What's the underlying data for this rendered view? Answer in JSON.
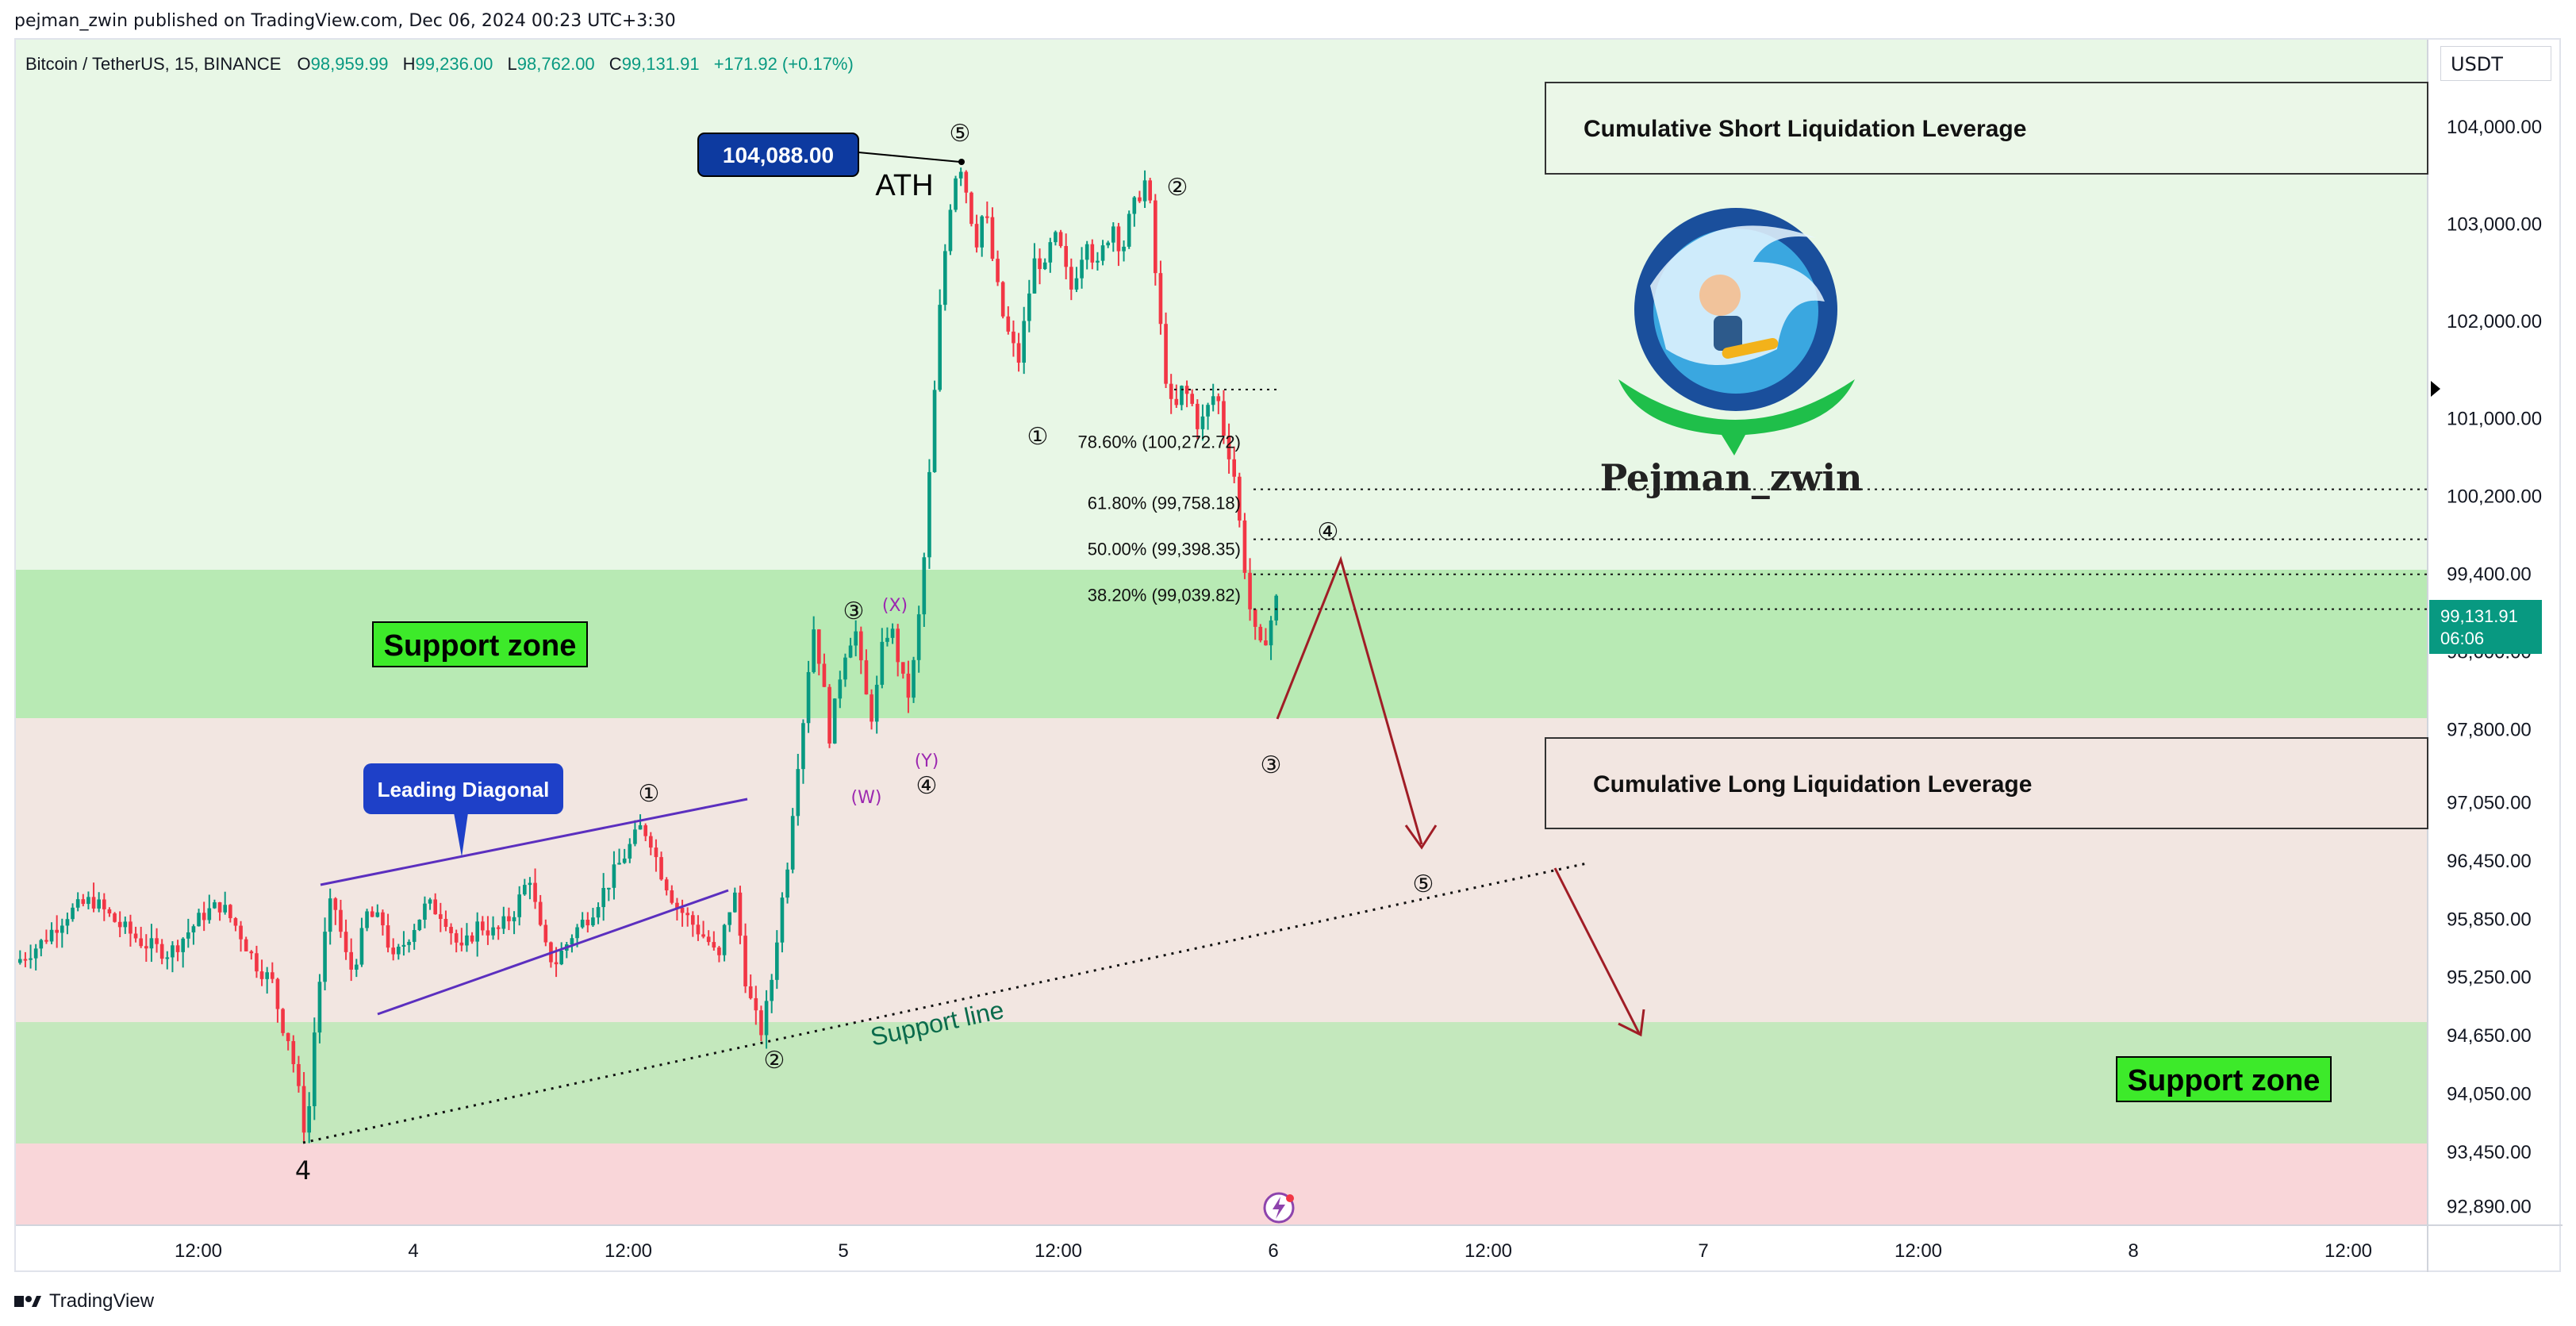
{
  "publisher": "pejman_zwin published on TradingView.com, Dec 06, 2024 00:23 UTC+3:30",
  "symbol": {
    "name": "Bitcoin / TetherUS, 15, BINANCE",
    "o_label": "O",
    "o": "98,959.99",
    "h_label": "H",
    "h": "99,236.00",
    "l_label": "L",
    "l": "98,762.00",
    "c_label": "C",
    "c": "99,131.91",
    "change": "+171.92 (+0.17%)"
  },
  "currency": "USDT",
  "last_price": {
    "value": "99,131.91",
    "countdown": "06:06",
    "color": "#089981"
  },
  "footer_brand": "TradingView",
  "colors": {
    "up": "#089981",
    "down": "#f23645",
    "support_zone": "#b8eab4",
    "bg_upper": "#e8f7e6",
    "bg_lower": "#f2e6e1",
    "bg_bottom": "#f9d6d9",
    "annotation_red": "#b22222",
    "diagonal": "#5b2fbf",
    "ath_label": "#0d3aa0"
  },
  "chart_data": {
    "type": "candlestick",
    "y_axis_ticks": [
      "104,000.00",
      "103,000.00",
      "102,000.00",
      "101,000.00",
      "100,200.00",
      "99,400.00",
      "98,600.00",
      "97,800.00",
      "97,050.00",
      "96,450.00",
      "95,850.00",
      "95,250.00",
      "94,650.00",
      "94,050.00",
      "93,450.00",
      "92,890.00"
    ],
    "x_axis_ticks": [
      "12:00",
      "4",
      "12:00",
      "5",
      "12:00",
      "6",
      "12:00",
      "7",
      "12:00",
      "8",
      "12:00"
    ],
    "ylim": [
      92700,
      104900
    ],
    "fibonacci": [
      {
        "label": "78.60% (100,272.72)",
        "price": 100272.72
      },
      {
        "label": "61.80% (99,758.18)",
        "price": 99758.18
      },
      {
        "label": "50.00% (99,398.35)",
        "price": 99398.35
      },
      {
        "label": "38.20% (99,039.82)",
        "price": 99039.82
      }
    ],
    "zones": [
      {
        "label": "Support zone",
        "from": 97800,
        "to": 99450
      },
      {
        "label": "Support zone",
        "from": 93600,
        "to": 94750
      }
    ],
    "ath": {
      "label": "ATH",
      "value": "104,088.00",
      "price": 104088
    },
    "leading_diagonal_label": "Leading Diagonal",
    "support_line_label": "Support line",
    "wave_label_4": "4",
    "wave_marks": {
      "w1": "①",
      "w2": "②",
      "w3": "③",
      "w4": "④",
      "w5": "⑤",
      "x": "(X)",
      "y": "(Y)",
      "w": "(W)"
    },
    "boxes": {
      "short": "Cumulative Short Liquidation Leverage",
      "long": "Cumulative Long Liquidation Leverage"
    },
    "logo_name": "Pejman_zwin",
    "path_waypoints": [
      [
        95400,
        0
      ],
      [
        95600,
        3
      ],
      [
        95900,
        6
      ],
      [
        96050,
        9
      ],
      [
        95800,
        12
      ],
      [
        95600,
        15
      ],
      [
        95500,
        18
      ],
      [
        95700,
        20
      ],
      [
        95900,
        22
      ],
      [
        96000,
        24
      ],
      [
        95750,
        26
      ],
      [
        95400,
        28
      ],
      [
        95200,
        30
      ],
      [
        94800,
        31
      ],
      [
        94600,
        32
      ],
      [
        94100,
        33
      ],
      [
        93550,
        34
      ],
      [
        94800,
        35
      ],
      [
        95600,
        36
      ],
      [
        96100,
        37
      ],
      [
        95700,
        38
      ],
      [
        95300,
        39
      ],
      [
        95500,
        40
      ],
      [
        95900,
        41
      ],
      [
        95800,
        43
      ],
      [
        95400,
        44
      ],
      [
        95700,
        46
      ],
      [
        96000,
        48
      ],
      [
        95900,
        50
      ],
      [
        95500,
        52
      ],
      [
        95800,
        54
      ],
      [
        95700,
        56
      ],
      [
        95900,
        58
      ],
      [
        96300,
        60
      ],
      [
        95800,
        61
      ],
      [
        95500,
        62
      ],
      [
        95400,
        63
      ],
      [
        95700,
        65
      ],
      [
        95900,
        67
      ],
      [
        96200,
        69
      ],
      [
        96500,
        71
      ],
      [
        96800,
        73
      ],
      [
        96700,
        74
      ],
      [
        96400,
        75
      ],
      [
        96000,
        77
      ],
      [
        95800,
        79
      ],
      [
        95600,
        81
      ],
      [
        95400,
        82
      ],
      [
        95900,
        83
      ],
      [
        96100,
        84
      ],
      [
        95300,
        85
      ],
      [
        94900,
        86
      ],
      [
        94700,
        87
      ],
      [
        95100,
        88
      ],
      [
        95800,
        89
      ],
      [
        96400,
        90
      ],
      [
        97300,
        91
      ],
      [
        98000,
        92
      ],
      [
        98900,
        93
      ],
      [
        98400,
        94
      ],
      [
        97700,
        95
      ],
      [
        98300,
        96
      ],
      [
        98700,
        97
      ],
      [
        98800,
        98
      ],
      [
        98200,
        99
      ],
      [
        97900,
        100
      ],
      [
        98600,
        101
      ],
      [
        98900,
        102
      ],
      [
        98500,
        103
      ],
      [
        98100,
        104
      ],
      [
        98600,
        105
      ],
      [
        99600,
        106
      ],
      [
        101000,
        107
      ],
      [
        102400,
        108
      ],
      [
        103200,
        109
      ],
      [
        103700,
        110
      ],
      [
        103300,
        111
      ],
      [
        102800,
        112
      ],
      [
        103200,
        113
      ],
      [
        102600,
        114
      ],
      [
        102100,
        115
      ],
      [
        101800,
        116
      ],
      [
        101600,
        117
      ],
      [
        102200,
        118
      ],
      [
        102700,
        119
      ],
      [
        102500,
        120
      ],
      [
        102900,
        121
      ],
      [
        102700,
        122
      ],
      [
        102300,
        123
      ],
      [
        102600,
        124
      ],
      [
        102900,
        125
      ],
      [
        102500,
        126
      ],
      [
        102800,
        127
      ],
      [
        103000,
        128
      ],
      [
        102700,
        129
      ],
      [
        103100,
        130
      ],
      [
        103300,
        131
      ],
      [
        103500,
        132
      ],
      [
        102400,
        133
      ],
      [
        101500,
        134
      ],
      [
        101000,
        135
      ],
      [
        101300,
        136
      ],
      [
        101200,
        137
      ],
      [
        100900,
        138
      ],
      [
        101100,
        139
      ],
      [
        101300,
        140
      ],
      [
        100800,
        141
      ],
      [
        100500,
        142
      ],
      [
        99700,
        143
      ],
      [
        99000,
        144
      ],
      [
        98600,
        145
      ],
      [
        98800,
        146
      ],
      [
        99131.91,
        147
      ]
    ]
  }
}
